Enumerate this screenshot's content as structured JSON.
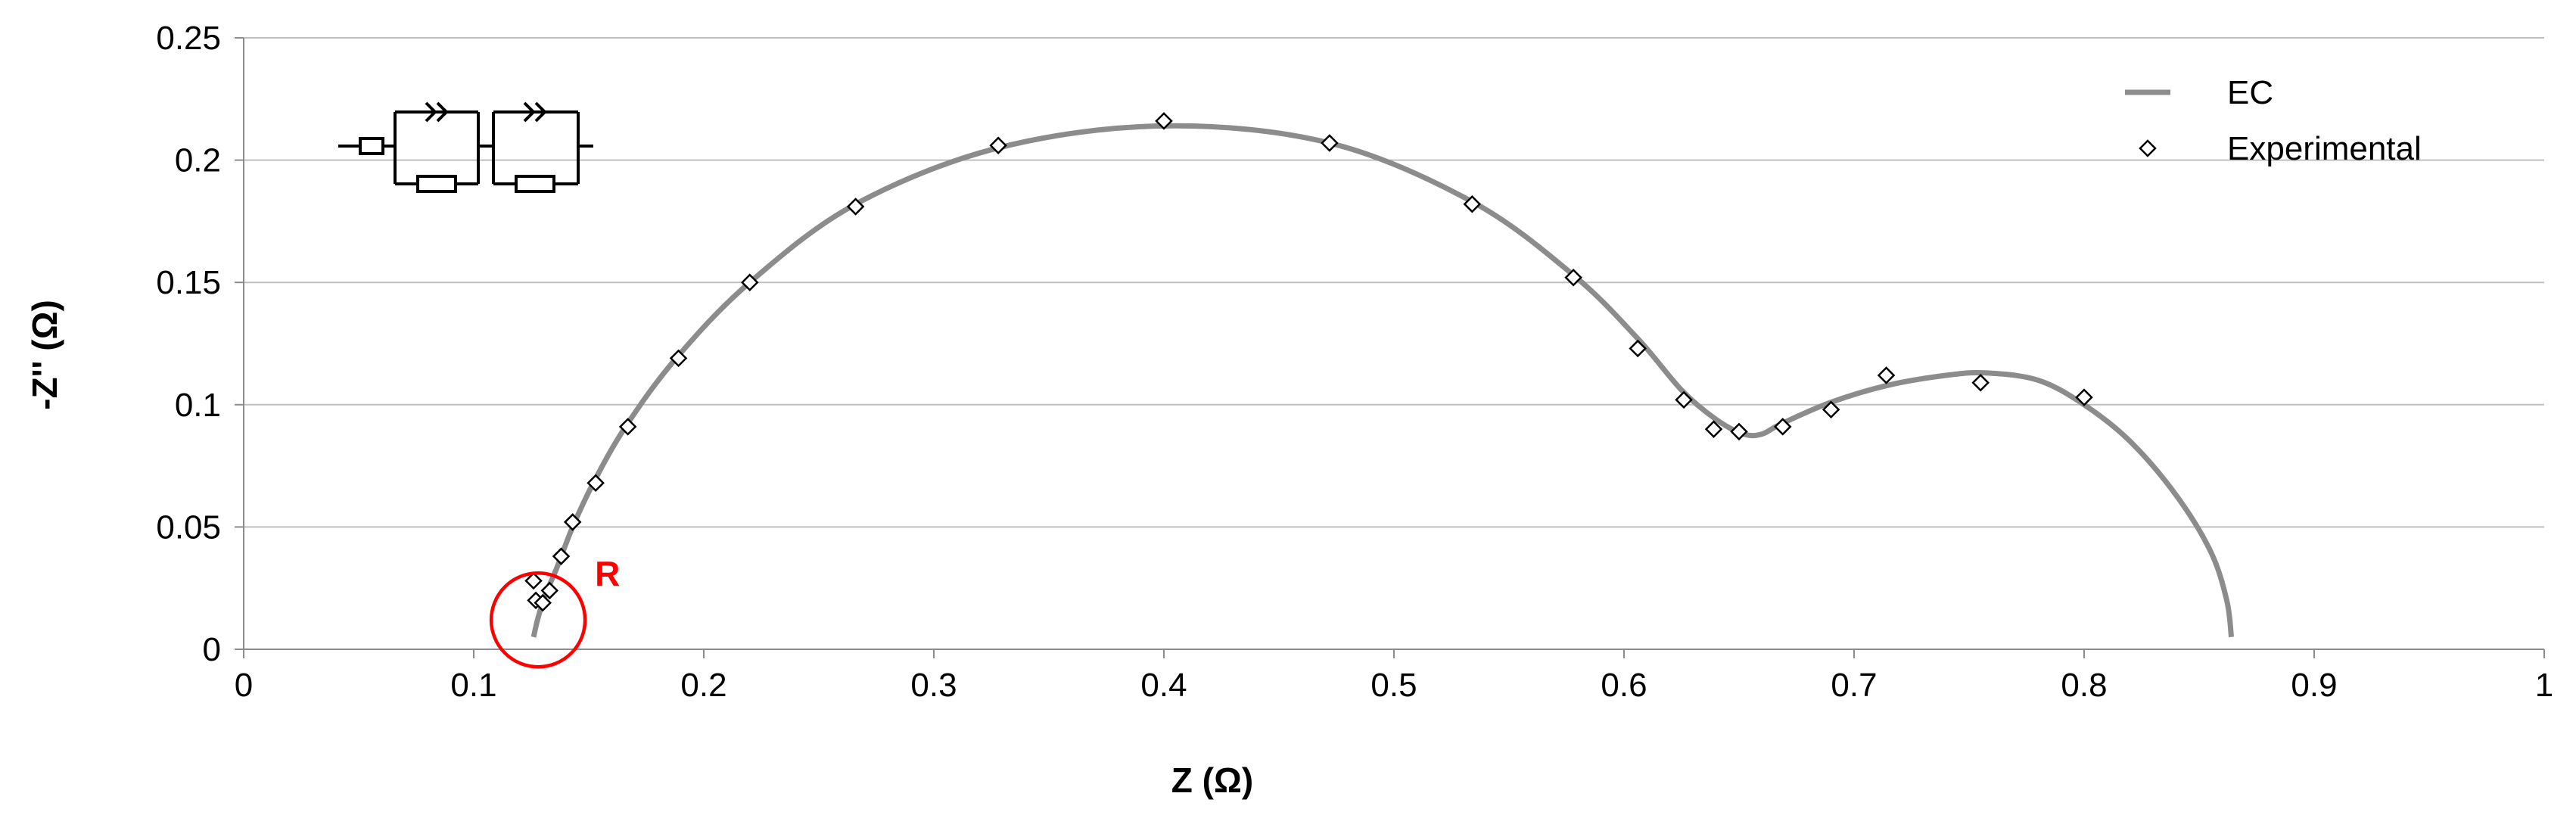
{
  "chart_data": {
    "type": "scatter",
    "title": "",
    "xlabel": "Z (Ω)",
    "ylabel": "-Z'' (Ω)",
    "xlim": [
      0,
      1
    ],
    "ylim": [
      0,
      0.25
    ],
    "xticks": [
      "0",
      "0.1",
      "0.2",
      "0.3",
      "0.4",
      "0.5",
      "0.6",
      "0.7",
      "0.8",
      "0.9",
      "1"
    ],
    "yticks": [
      "0",
      "0.05",
      "0.1",
      "0.15",
      "0.2",
      "0.25"
    ],
    "grid": "horizontal",
    "legend_position": "top-right",
    "series": [
      {
        "name": "EC",
        "kind": "line",
        "color": "#8c8c8c",
        "x": [
          0.126,
          0.128,
          0.131,
          0.136,
          0.143,
          0.152,
          0.166,
          0.188,
          0.22,
          0.266,
          0.328,
          0.4,
          0.472,
          0.534,
          0.578,
          0.606,
          0.625,
          0.64,
          0.652,
          0.66,
          0.668,
          0.69,
          0.715,
          0.74,
          0.757,
          0.78,
          0.8,
          0.82,
          0.84,
          0.855,
          0.862,
          0.864
        ],
        "y": [
          0.005,
          0.013,
          0.022,
          0.033,
          0.05,
          0.068,
          0.091,
          0.119,
          0.15,
          0.182,
          0.205,
          0.214,
          0.207,
          0.183,
          0.153,
          0.127,
          0.106,
          0.094,
          0.088,
          0.088,
          0.092,
          0.101,
          0.108,
          0.112,
          0.113,
          0.11,
          0.1,
          0.085,
          0.063,
          0.04,
          0.02,
          0.005
        ]
      },
      {
        "name": "Experimental",
        "kind": "marker",
        "color": "#000000",
        "x": [
          0.126,
          0.127,
          0.13,
          0.133,
          0.138,
          0.143,
          0.153,
          0.167,
          0.189,
          0.22,
          0.266,
          0.328,
          0.4,
          0.472,
          0.534,
          0.578,
          0.606,
          0.626,
          0.639,
          0.65,
          0.669,
          0.69,
          0.714,
          0.755,
          0.8
        ],
        "y": [
          0.028,
          0.02,
          0.019,
          0.024,
          0.038,
          0.052,
          0.068,
          0.091,
          0.119,
          0.15,
          0.181,
          0.206,
          0.216,
          0.207,
          0.182,
          0.152,
          0.123,
          0.102,
          0.09,
          0.089,
          0.091,
          0.098,
          0.112,
          0.109,
          0.103
        ]
      }
    ],
    "annotations": [
      {
        "text": "R",
        "color": "#ff0000",
        "x": 0.128,
        "y": 0.012
      }
    ]
  }
}
